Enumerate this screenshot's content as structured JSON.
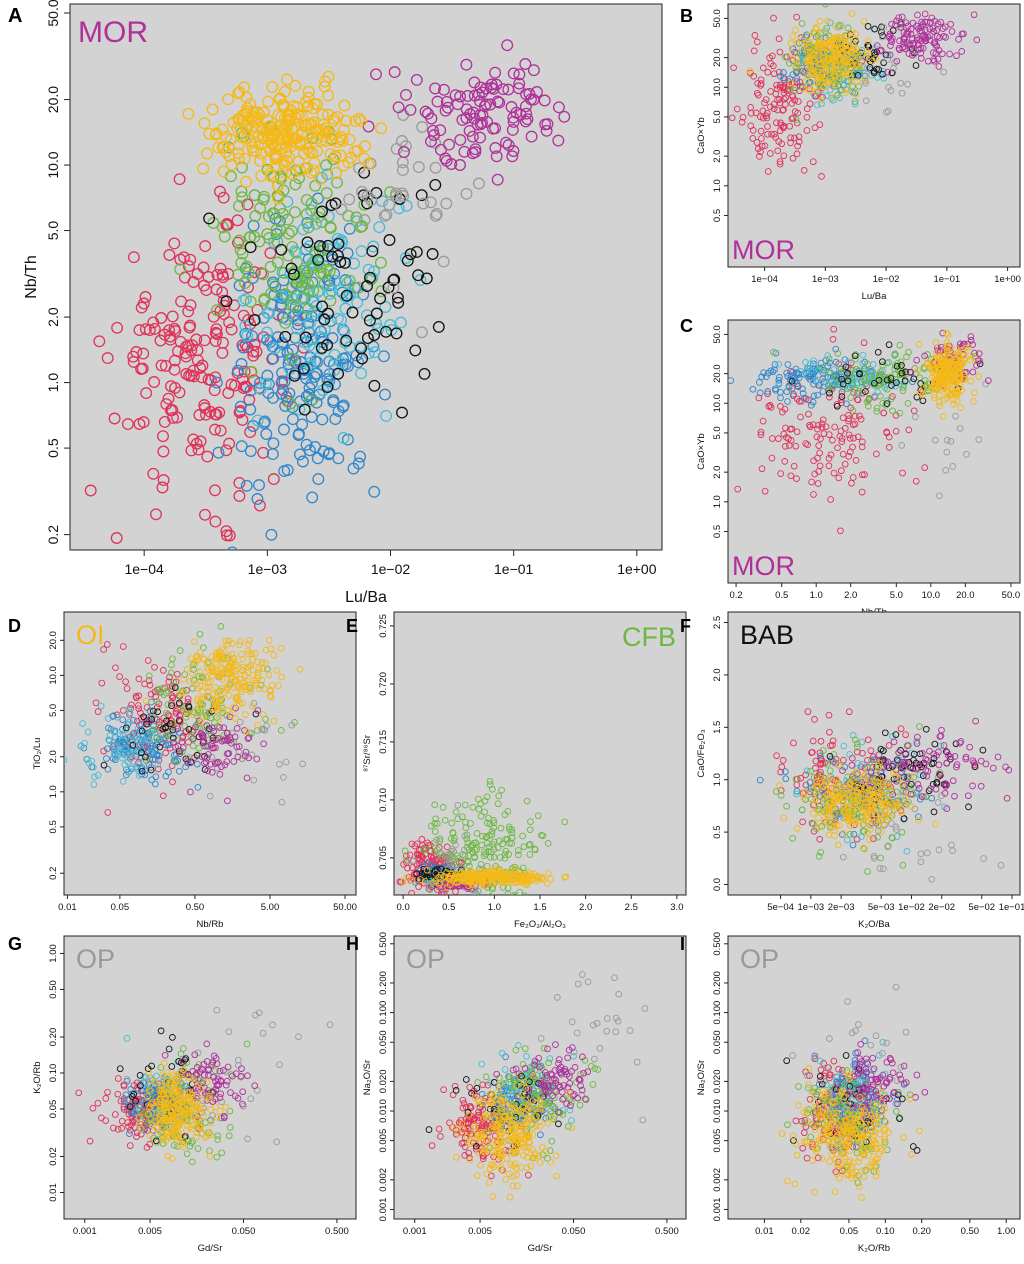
{
  "colors": {
    "MOR": "#b0309a",
    "OI": "#f4b918",
    "CFB": "#6cb843",
    "BAB": "#111111",
    "OP": "#9a9a9a",
    "red": "#e0325a",
    "blue": "#2f86c9",
    "cyan": "#46bcd6"
  },
  "chart_data": [
    {
      "id": "A",
      "type": "scatter",
      "panel_letter": "A",
      "corner_label": "MOR",
      "corner_color_key": "MOR",
      "xlabel": "Lu/Ba",
      "ylabel": "Nb/Th",
      "xscale": "log",
      "yscale": "log",
      "xlim": [
        2.5e-05,
        1.6
      ],
      "ylim": [
        0.17,
        55
      ],
      "xticks": [
        "1e−04",
        "1e−03",
        "1e−02",
        "1e−01",
        "1e+00"
      ],
      "xtick_values": [
        0.0001,
        0.001,
        0.01,
        0.1,
        1
      ],
      "yticks": [
        "0.2",
        "0.5",
        "1.0",
        "2.0",
        "5.0",
        "10.0",
        "20.0",
        "50.0"
      ],
      "ytick_values": [
        0.2,
        0.5,
        1,
        2,
        5,
        10,
        20,
        50
      ],
      "clusters": [
        {
          "group": "red",
          "cx": 0.0003,
          "cy": 1.3,
          "sx": 0.35,
          "sy": 0.3,
          "n": 200
        },
        {
          "group": "blue",
          "cx": 0.002,
          "cy": 1.2,
          "sx": 0.3,
          "sy": 0.3,
          "n": 180
        },
        {
          "group": "cyan",
          "cx": 0.003,
          "cy": 2.5,
          "sx": 0.3,
          "sy": 0.25,
          "n": 110
        },
        {
          "group": "CFB",
          "cx": 0.0015,
          "cy": 4.5,
          "sx": 0.35,
          "sy": 0.25,
          "n": 130
        },
        {
          "group": "OI",
          "cx": 0.0015,
          "cy": 14.0,
          "sx": 0.3,
          "sy": 0.1,
          "n": 240
        },
        {
          "group": "BAB",
          "cx": 0.005,
          "cy": 3.0,
          "sx": 0.4,
          "sy": 0.3,
          "n": 70
        },
        {
          "group": "OP",
          "cx": 0.015,
          "cy": 8.0,
          "sx": 0.3,
          "sy": 0.2,
          "n": 35
        },
        {
          "group": "MOR",
          "cx": 0.06,
          "cy": 17.0,
          "sx": 0.3,
          "sy": 0.12,
          "n": 110
        }
      ]
    },
    {
      "id": "B",
      "type": "scatter",
      "panel_letter": "B",
      "corner_label": "MOR",
      "corner_color_key": "MOR",
      "xlabel": "Lu/Ba",
      "ylabel": "CaO×Yb",
      "xscale": "log",
      "yscale": "log",
      "xlim": [
        2.5e-05,
        1.6
      ],
      "ylim": [
        0.15,
        70
      ],
      "xticks": [
        "1e−04",
        "1e−03",
        "1e−02",
        "1e−01",
        "1e+00"
      ],
      "xtick_values": [
        0.0001,
        0.001,
        0.01,
        0.1,
        1
      ],
      "yticks": [
        "0.5",
        "1.0",
        "2.0",
        "5.0",
        "10.0",
        "20.0",
        "50.0"
      ],
      "ytick_values": [
        0.5,
        1,
        2,
        5,
        10,
        20,
        50
      ],
      "clusters": [
        {
          "group": "red",
          "cx": 0.0002,
          "cy": 6.0,
          "sx": 0.35,
          "sy": 0.35,
          "n": 150
        },
        {
          "group": "blue",
          "cx": 0.001,
          "cy": 18.0,
          "sx": 0.3,
          "sy": 0.15,
          "n": 90
        },
        {
          "group": "cyan",
          "cx": 0.002,
          "cy": 16.0,
          "sx": 0.3,
          "sy": 0.2,
          "n": 70
        },
        {
          "group": "CFB",
          "cx": 0.001,
          "cy": 16.0,
          "sx": 0.3,
          "sy": 0.2,
          "n": 90
        },
        {
          "group": "OI",
          "cx": 0.0012,
          "cy": 20.0,
          "sx": 0.3,
          "sy": 0.15,
          "n": 220
        },
        {
          "group": "BAB",
          "cx": 0.006,
          "cy": 22.0,
          "sx": 0.35,
          "sy": 0.15,
          "n": 40
        },
        {
          "group": "OP",
          "cx": 0.01,
          "cy": 15.0,
          "sx": 0.4,
          "sy": 0.3,
          "n": 25
        },
        {
          "group": "MOR",
          "cx": 0.04,
          "cy": 32.0,
          "sx": 0.35,
          "sy": 0.12,
          "n": 120
        }
      ]
    },
    {
      "id": "C",
      "type": "scatter",
      "panel_letter": "C",
      "corner_label": "MOR",
      "corner_color_key": "MOR",
      "xlabel": "Nb/Th",
      "ylabel": "CaO×Yb",
      "xscale": "log",
      "yscale": "log",
      "xlim": [
        0.17,
        60
      ],
      "ylim": [
        0.15,
        70
      ],
      "xticks": [
        "0.2",
        "0.5",
        "1.0",
        "2.0",
        "5.0",
        "10.0",
        "20.0",
        "50.0"
      ],
      "xtick_values": [
        0.2,
        0.5,
        1,
        2,
        5,
        10,
        20,
        50
      ],
      "yticks": [
        "0.5",
        "1.0",
        "2.0",
        "5.0",
        "10.0",
        "20.0",
        "50.0"
      ],
      "ytick_values": [
        0.5,
        1,
        2,
        5,
        10,
        20,
        50
      ],
      "clusters": [
        {
          "group": "red",
          "cx": 1.2,
          "cy": 5.0,
          "sx": 0.3,
          "sy": 0.35,
          "n": 160
        },
        {
          "group": "blue",
          "cx": 0.9,
          "cy": 18.0,
          "sx": 0.3,
          "sy": 0.12,
          "n": 120
        },
        {
          "group": "cyan",
          "cx": 2.0,
          "cy": 18.0,
          "sx": 0.3,
          "sy": 0.12,
          "n": 70
        },
        {
          "group": "CFB",
          "cx": 4.0,
          "cy": 18.0,
          "sx": 0.3,
          "sy": 0.15,
          "n": 110
        },
        {
          "group": "OI",
          "cx": 14.0,
          "cy": 20.0,
          "sx": 0.1,
          "sy": 0.15,
          "n": 220
        },
        {
          "group": "BAB",
          "cx": 4.0,
          "cy": 20.0,
          "sx": 0.4,
          "sy": 0.15,
          "n": 40
        },
        {
          "group": "OP",
          "cx": 15.0,
          "cy": 5.0,
          "sx": 0.2,
          "sy": 0.3,
          "n": 15
        },
        {
          "group": "MOR",
          "cx": 16.0,
          "cy": 30.0,
          "sx": 0.15,
          "sy": 0.12,
          "n": 60
        }
      ]
    },
    {
      "id": "D",
      "type": "scatter",
      "panel_letter": "D",
      "corner_label": "OI",
      "corner_color_key": "OI",
      "xlabel": "Nb/Rb",
      "ylabel": "TiO₂/Lu",
      "xscale": "log",
      "yscale": "log",
      "xlim": [
        0.009,
        70
      ],
      "ylim": [
        0.13,
        35
      ],
      "xticks": [
        "0.01",
        "0.05",
        "0.50",
        "5.00",
        "50.00"
      ],
      "xtick_values": [
        0.01,
        0.05,
        0.5,
        5,
        50
      ],
      "yticks": [
        "0.2",
        "0.5",
        "1.0",
        "2.0",
        "5.0",
        "10.0",
        "20.0"
      ],
      "ytick_values": [
        0.2,
        0.5,
        1,
        2,
        5,
        10,
        20
      ],
      "clusters": [
        {
          "group": "red",
          "cx": 0.15,
          "cy": 4.0,
          "sx": 0.35,
          "sy": 0.25,
          "n": 130
        },
        {
          "group": "blue",
          "cx": 0.1,
          "cy": 2.5,
          "sx": 0.3,
          "sy": 0.15,
          "n": 130
        },
        {
          "group": "cyan",
          "cx": 0.05,
          "cy": 2.5,
          "sx": 0.3,
          "sy": 0.15,
          "n": 60
        },
        {
          "group": "CFB",
          "cx": 0.6,
          "cy": 5.0,
          "sx": 0.35,
          "sy": 0.25,
          "n": 110
        },
        {
          "group": "OI",
          "cx": 1.5,
          "cy": 9.0,
          "sx": 0.3,
          "sy": 0.18,
          "n": 220
        },
        {
          "group": "BAB",
          "cx": 0.2,
          "cy": 3.0,
          "sx": 0.4,
          "sy": 0.2,
          "n": 40
        },
        {
          "group": "OP",
          "cx": 3.0,
          "cy": 2.5,
          "sx": 0.4,
          "sy": 0.3,
          "n": 25
        },
        {
          "group": "MOR",
          "cx": 1.0,
          "cy": 2.5,
          "sx": 0.3,
          "sy": 0.15,
          "n": 80
        }
      ]
    },
    {
      "id": "E",
      "type": "scatter",
      "panel_letter": "E",
      "corner_label": "CFB",
      "corner_color_key": "CFB",
      "xlabel": "Fe₂O₃/Al₂O₃",
      "ylabel": "⁸⁷Sr/⁸⁶Sr",
      "xscale": "linear",
      "yscale": "linear",
      "xlim": [
        -0.1,
        3.1
      ],
      "ylim": [
        0.7018,
        0.7262
      ],
      "xticks": [
        "0.0",
        "0.5",
        "1.0",
        "1.5",
        "2.0",
        "2.5",
        "3.0"
      ],
      "xtick_values": [
        0,
        0.5,
        1,
        1.5,
        2,
        2.5,
        3
      ],
      "yticks": [
        "0.705",
        "0.710",
        "0.715",
        "0.720",
        "0.725"
      ],
      "ytick_values": [
        0.705,
        0.71,
        0.715,
        0.72,
        0.725
      ],
      "clusters": [
        {
          "group": "red",
          "cx": 0.3,
          "cy": 0.7042,
          "sx": 0.15,
          "sy": 0.0012,
          "n": 130
        },
        {
          "group": "blue",
          "cx": 0.4,
          "cy": 0.7035,
          "sx": 0.1,
          "sy": 0.0004,
          "n": 90
        },
        {
          "group": "cyan",
          "cx": 0.5,
          "cy": 0.7033,
          "sx": 0.15,
          "sy": 0.0003,
          "n": 60
        },
        {
          "group": "CFB",
          "cx": 0.85,
          "cy": 0.7055,
          "sx": 0.35,
          "sy": 0.0025,
          "n": 210
        },
        {
          "group": "OI",
          "cx": 0.95,
          "cy": 0.7033,
          "sx": 0.35,
          "sy": 0.0003,
          "n": 240
        },
        {
          "group": "BAB",
          "cx": 0.4,
          "cy": 0.7035,
          "sx": 0.15,
          "sy": 0.0004,
          "n": 40
        },
        {
          "group": "OP",
          "cx": 0.5,
          "cy": 0.7045,
          "sx": 0.2,
          "sy": 0.0015,
          "n": 25
        },
        {
          "group": "MOR",
          "cx": 0.6,
          "cy": 0.7028,
          "sx": 0.15,
          "sy": 0.0002,
          "n": 60
        }
      ]
    },
    {
      "id": "F",
      "type": "scatter",
      "panel_letter": "F",
      "corner_label": "BAB",
      "corner_color_key": "BAB",
      "xlabel": "K₂O/Ba",
      "ylabel": "CaO/Fe₂O₃",
      "xscale": "log",
      "yscale": "linear",
      "xlim": [
        0.00015,
        0.12
      ],
      "ylim": [
        -0.1,
        2.6
      ],
      "xticks": [
        "5e−04",
        "1e−03",
        "2e−03",
        "5e−03",
        "1e−02",
        "2e−02",
        "5e−02",
        "1e−01"
      ],
      "xtick_values": [
        0.0005,
        0.001,
        0.002,
        0.005,
        0.01,
        0.02,
        0.05,
        0.1
      ],
      "yticks": [
        "0.0",
        "0.5",
        "1.0",
        "1.5",
        "2.0",
        "2.5"
      ],
      "ytick_values": [
        0,
        0.5,
        1,
        1.5,
        2,
        2.5
      ],
      "clusters": [
        {
          "group": "red",
          "cx": 0.002,
          "cy": 1.0,
          "sx": 0.35,
          "sy": 0.25,
          "n": 130
        },
        {
          "group": "blue",
          "cx": 0.003,
          "cy": 0.9,
          "sx": 0.3,
          "sy": 0.15,
          "n": 110
        },
        {
          "group": "cyan",
          "cx": 0.004,
          "cy": 0.9,
          "sx": 0.3,
          "sy": 0.25,
          "n": 60
        },
        {
          "group": "CFB",
          "cx": 0.003,
          "cy": 0.8,
          "sx": 0.35,
          "sy": 0.25,
          "n": 110
        },
        {
          "group": "OI",
          "cx": 0.003,
          "cy": 0.8,
          "sx": 0.25,
          "sy": 0.15,
          "n": 240
        },
        {
          "group": "BAB",
          "cx": 0.008,
          "cy": 1.1,
          "sx": 0.35,
          "sy": 0.2,
          "n": 60
        },
        {
          "group": "OP",
          "cx": 0.01,
          "cy": 0.6,
          "sx": 0.45,
          "sy": 0.3,
          "n": 30
        },
        {
          "group": "MOR",
          "cx": 0.015,
          "cy": 1.1,
          "sx": 0.35,
          "sy": 0.15,
          "n": 90
        }
      ]
    },
    {
      "id": "G",
      "type": "scatter",
      "panel_letter": "G",
      "corner_label": "OP",
      "corner_color_key": "OP",
      "xlabel": "Gd/Sr",
      "ylabel": "K₂O/Rb",
      "xscale": "log",
      "yscale": "log",
      "xlim": [
        0.0006,
        0.8
      ],
      "ylim": [
        0.006,
        1.4
      ],
      "xticks": [
        "0.001",
        "0.005",
        "0.050",
        "0.500"
      ],
      "xtick_values": [
        0.001,
        0.005,
        0.05,
        0.5
      ],
      "yticks": [
        "0.01",
        "0.02",
        "0.05",
        "0.10",
        "0.20",
        "0.50",
        "1.00"
      ],
      "ytick_values": [
        0.01,
        0.02,
        0.05,
        0.1,
        0.2,
        0.5,
        1
      ],
      "clusters": [
        {
          "group": "red",
          "cx": 0.004,
          "cy": 0.05,
          "sx": 0.2,
          "sy": 0.12,
          "n": 130
        },
        {
          "group": "blue",
          "cx": 0.006,
          "cy": 0.055,
          "sx": 0.15,
          "sy": 0.1,
          "n": 110
        },
        {
          "group": "cyan",
          "cx": 0.007,
          "cy": 0.06,
          "sx": 0.2,
          "sy": 0.15,
          "n": 60
        },
        {
          "group": "CFB",
          "cx": 0.012,
          "cy": 0.05,
          "sx": 0.25,
          "sy": 0.2,
          "n": 110
        },
        {
          "group": "OI",
          "cx": 0.01,
          "cy": 0.05,
          "sx": 0.18,
          "sy": 0.15,
          "n": 240
        },
        {
          "group": "BAB",
          "cx": 0.008,
          "cy": 0.08,
          "sx": 0.2,
          "sy": 0.2,
          "n": 30
        },
        {
          "group": "OP",
          "cx": 0.03,
          "cy": 0.08,
          "sx": 0.4,
          "sy": 0.3,
          "n": 30
        },
        {
          "group": "MOR",
          "cx": 0.02,
          "cy": 0.08,
          "sx": 0.2,
          "sy": 0.15,
          "n": 80
        }
      ]
    },
    {
      "id": "H",
      "type": "scatter",
      "panel_letter": "H",
      "corner_label": "OP",
      "corner_color_key": "OP",
      "xlabel": "Gd/Sr",
      "ylabel": "Na₂O/Sr",
      "xscale": "log",
      "yscale": "log",
      "xlim": [
        0.0006,
        0.8
      ],
      "ylim": [
        0.0008,
        0.6
      ],
      "xticks": [
        "0.001",
        "0.005",
        "0.050",
        "0.500"
      ],
      "xtick_values": [
        0.001,
        0.005,
        0.05,
        0.5
      ],
      "yticks": [
        "0.001",
        "0.002",
        "0.005",
        "0.010",
        "0.020",
        "0.050",
        "0.100",
        "0.200",
        "0.500"
      ],
      "ytick_values": [
        0.001,
        0.002,
        0.005,
        0.01,
        0.02,
        0.05,
        0.1,
        0.2,
        0.5
      ],
      "clusters": [
        {
          "group": "red",
          "cx": 0.005,
          "cy": 0.007,
          "sx": 0.2,
          "sy": 0.2,
          "n": 130
        },
        {
          "group": "blue",
          "cx": 0.012,
          "cy": 0.012,
          "sx": 0.2,
          "sy": 0.15,
          "n": 110
        },
        {
          "group": "cyan",
          "cx": 0.015,
          "cy": 0.015,
          "sx": 0.2,
          "sy": 0.2,
          "n": 60
        },
        {
          "group": "CFB",
          "cx": 0.02,
          "cy": 0.012,
          "sx": 0.25,
          "sy": 0.25,
          "n": 110
        },
        {
          "group": "OI",
          "cx": 0.01,
          "cy": 0.006,
          "sx": 0.22,
          "sy": 0.22,
          "n": 240
        },
        {
          "group": "BAB",
          "cx": 0.01,
          "cy": 0.01,
          "sx": 0.25,
          "sy": 0.2,
          "n": 30
        },
        {
          "group": "OP",
          "cx": 0.1,
          "cy": 0.08,
          "sx": 0.35,
          "sy": 0.35,
          "n": 25
        },
        {
          "group": "MOR",
          "cx": 0.03,
          "cy": 0.02,
          "sx": 0.2,
          "sy": 0.15,
          "n": 80
        }
      ]
    },
    {
      "id": "I",
      "type": "scatter",
      "panel_letter": "I",
      "corner_label": "OP",
      "corner_color_key": "OP",
      "xlabel": "K₂O/Rb",
      "ylabel": "Na₂O/Sr",
      "xscale": "log",
      "yscale": "log",
      "xlim": [
        0.005,
        1.3
      ],
      "ylim": [
        0.0008,
        0.6
      ],
      "xticks": [
        "0.01",
        "0.02",
        "0.05",
        "0.10",
        "0.20",
        "0.50",
        "1.00"
      ],
      "xtick_values": [
        0.01,
        0.02,
        0.05,
        0.1,
        0.2,
        0.5,
        1
      ],
      "yticks": [
        "0.001",
        "0.002",
        "0.005",
        "0.010",
        "0.020",
        "0.050",
        "0.100",
        "0.200",
        "0.500"
      ],
      "ytick_values": [
        0.001,
        0.002,
        0.005,
        0.01,
        0.02,
        0.05,
        0.1,
        0.2,
        0.5
      ],
      "clusters": [
        {
          "group": "red",
          "cx": 0.04,
          "cy": 0.01,
          "sx": 0.15,
          "sy": 0.25,
          "n": 130
        },
        {
          "group": "blue",
          "cx": 0.05,
          "cy": 0.012,
          "sx": 0.12,
          "sy": 0.2,
          "n": 110
        },
        {
          "group": "cyan",
          "cx": 0.06,
          "cy": 0.015,
          "sx": 0.15,
          "sy": 0.2,
          "n": 60
        },
        {
          "group": "CFB",
          "cx": 0.05,
          "cy": 0.008,
          "sx": 0.2,
          "sy": 0.25,
          "n": 110
        },
        {
          "group": "OI",
          "cx": 0.05,
          "cy": 0.006,
          "sx": 0.18,
          "sy": 0.22,
          "n": 240
        },
        {
          "group": "BAB",
          "cx": 0.07,
          "cy": 0.01,
          "sx": 0.25,
          "sy": 0.2,
          "n": 30
        },
        {
          "group": "OP",
          "cx": 0.07,
          "cy": 0.03,
          "sx": 0.3,
          "sy": 0.35,
          "n": 25
        },
        {
          "group": "MOR",
          "cx": 0.08,
          "cy": 0.02,
          "sx": 0.15,
          "sy": 0.15,
          "n": 80
        }
      ]
    }
  ]
}
